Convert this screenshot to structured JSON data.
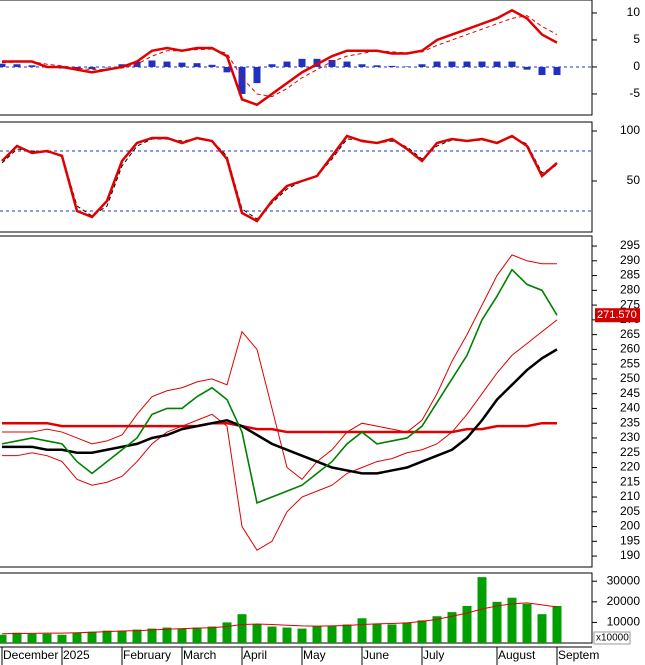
{
  "chart_data": [
    {
      "type": "line",
      "ylim": [
        -8.9,
        12.4
      ],
      "yticks": [
        10,
        5,
        0,
        -5
      ],
      "ref_lines": [
        0
      ],
      "ref_color": "#2030c0",
      "series": [
        {
          "color": "#2030c0",
          "style": "bar",
          "values": [
            0.6,
            0.5,
            0.3,
            0,
            -0.3,
            -0.5,
            -0.4,
            0,
            0.5,
            1,
            1.2,
            1,
            0.8,
            0.7,
            0.4,
            -1,
            -5,
            -3,
            0.5,
            1,
            1.5,
            1.5,
            1.3,
            1,
            0.5,
            0.3,
            0.2,
            0.1,
            0.5,
            1,
            1,
            1,
            1,
            1,
            1,
            -0.5,
            -1.5,
            -1.5
          ]
        },
        {
          "color": "#e00000",
          "style": "dashed",
          "values": [
            0.8,
            0.9,
            1,
            0.5,
            0.2,
            -0.2,
            -0.5,
            -0.5,
            -0.2,
            0.5,
            2,
            3,
            3,
            3.2,
            3.3,
            2.5,
            -2,
            -5,
            -5.5,
            -4,
            -2,
            -0.5,
            1,
            2,
            2.5,
            3,
            2.8,
            2.6,
            2.8,
            4,
            5,
            6,
            7,
            8,
            9,
            9.5,
            7.5,
            6
          ]
        },
        {
          "color": "#e00000",
          "style": "thick",
          "values": [
            1,
            1,
            1,
            0,
            0,
            -0.5,
            -1,
            -0.5,
            0,
            1,
            3,
            3.5,
            3,
            3.5,
            3.5,
            2,
            -6,
            -7,
            -5,
            -3,
            -1,
            0.5,
            2,
            3,
            3,
            3,
            2.5,
            2.5,
            3,
            5,
            6,
            7,
            8,
            9,
            10.5,
            9,
            6,
            4.5
          ]
        }
      ]
    },
    {
      "type": "line",
      "ylim": [
        -1,
        109
      ],
      "yticks": [
        100,
        50
      ],
      "ref_lines": [
        80,
        20
      ],
      "ref_color": "#2030c0",
      "series": [
        {
          "color": "#000000",
          "style": "dashed",
          "values": [
            68,
            82,
            80,
            79,
            76,
            25,
            15,
            25,
            65,
            85,
            92,
            92,
            90,
            92,
            90,
            75,
            22,
            12,
            28,
            42,
            50,
            55,
            72,
            92,
            91,
            88,
            90,
            84,
            72,
            85,
            91,
            90,
            91,
            89,
            94,
            87,
            58,
            66
          ]
        },
        {
          "color": "#e00000",
          "style": "thick",
          "values": [
            70,
            85,
            78,
            80,
            75,
            20,
            14,
            30,
            70,
            88,
            93,
            93,
            88,
            93,
            90,
            72,
            18,
            10,
            30,
            45,
            50,
            55,
            75,
            95,
            90,
            88,
            92,
            82,
            70,
            88,
            92,
            90,
            92,
            88,
            95,
            85,
            55,
            68
          ]
        }
      ]
    },
    {
      "type": "line",
      "ylim": [
        186.3,
        298.4
      ],
      "yticks": [
        295,
        290,
        285,
        280,
        275,
        270,
        265,
        260,
        255,
        250,
        245,
        240,
        235,
        230,
        225,
        220,
        215,
        210,
        205,
        200,
        195,
        190
      ],
      "last_label": {
        "value": 271.57,
        "label": "271.570"
      },
      "series": [
        {
          "color": "#e00000",
          "style": "thin",
          "values": [
            232,
            232,
            232,
            233,
            232,
            230,
            228,
            229,
            231,
            238,
            244,
            246,
            247,
            249,
            250,
            248,
            266,
            260,
            240,
            220,
            216,
            222,
            226,
            232,
            235,
            234,
            233,
            232,
            236,
            245,
            256,
            265,
            275,
            285,
            292,
            290,
            289,
            289
          ]
        },
        {
          "color": "#e00000",
          "style": "thin",
          "values": [
            224,
            224,
            225,
            224,
            222,
            216,
            214,
            215,
            217,
            222,
            228,
            232,
            234,
            236,
            238,
            234,
            200,
            192,
            195,
            205,
            210,
            212,
            214,
            218,
            220,
            222,
            223,
            225,
            226,
            228,
            232,
            238,
            245,
            252,
            258,
            262,
            266,
            270
          ]
        },
        {
          "color": "#e00000",
          "style": "thick",
          "values": [
            235,
            235,
            235,
            235,
            234,
            234,
            234,
            234,
            234,
            234,
            234,
            234,
            234,
            234,
            235,
            235,
            234,
            233,
            233,
            232,
            232,
            232,
            232,
            232,
            232,
            232,
            232,
            232,
            232,
            232,
            232,
            233,
            233,
            234,
            234,
            234,
            235,
            235
          ]
        },
        {
          "color": "#000000",
          "style": "thick",
          "values": [
            227,
            227,
            227,
            226,
            226,
            225,
            225,
            226,
            227,
            228,
            230,
            231,
            233,
            234,
            235,
            236,
            234,
            231,
            228,
            226,
            224,
            222,
            220,
            219,
            218,
            218,
            219,
            220,
            222,
            224,
            226,
            230,
            236,
            243,
            248,
            253,
            257,
            260
          ]
        },
        {
          "color": "#008000",
          "style": "line",
          "values": [
            228,
            229,
            230,
            229,
            228,
            222,
            218,
            222,
            226,
            230,
            238,
            240,
            240,
            244,
            247,
            243,
            232,
            208,
            210,
            212,
            214,
            218,
            222,
            228,
            232,
            228,
            229,
            230,
            234,
            242,
            250,
            258,
            270,
            278,
            287,
            282,
            280,
            271.57
          ]
        }
      ]
    },
    {
      "type": "bar",
      "ylim": [
        0,
        34000
      ],
      "yticks": [
        30000,
        20000,
        10000
      ],
      "unit_label": "x10000",
      "categories": [
        "December",
        null,
        null,
        null,
        "2025",
        null,
        null,
        null,
        "February",
        null,
        null,
        null,
        "March",
        null,
        null,
        null,
        "April",
        null,
        null,
        null,
        "May",
        null,
        null,
        null,
        "June",
        null,
        null,
        null,
        "July",
        null,
        null,
        null,
        null,
        "August",
        null,
        null,
        null,
        "Septem"
      ],
      "series": [
        {
          "color": "#00a000",
          "style": "bar",
          "values": [
            4000,
            5000,
            4500,
            4500,
            4000,
            5000,
            5500,
            6000,
            6000,
            6500,
            7000,
            7500,
            7000,
            7500,
            8000,
            10000,
            14000,
            9000,
            8000,
            7500,
            7000,
            8000,
            8500,
            9000,
            12000,
            9500,
            9000,
            10000,
            11000,
            13000,
            15000,
            18000,
            32000,
            20000,
            22000,
            19000,
            14000,
            18000
          ]
        },
        {
          "color": "#e00000",
          "style": "thin",
          "values": [
            4500,
            4600,
            4700,
            4800,
            4800,
            5000,
            5200,
            5500,
            5800,
            6000,
            6300,
            6700,
            7000,
            7200,
            7400,
            8000,
            9000,
            9200,
            9000,
            8600,
            8300,
            8200,
            8300,
            8500,
            9000,
            9300,
            9500,
            9800,
            10500,
            11500,
            13000,
            14500,
            16500,
            18000,
            19000,
            19500,
            18500,
            17500
          ]
        }
      ]
    }
  ]
}
